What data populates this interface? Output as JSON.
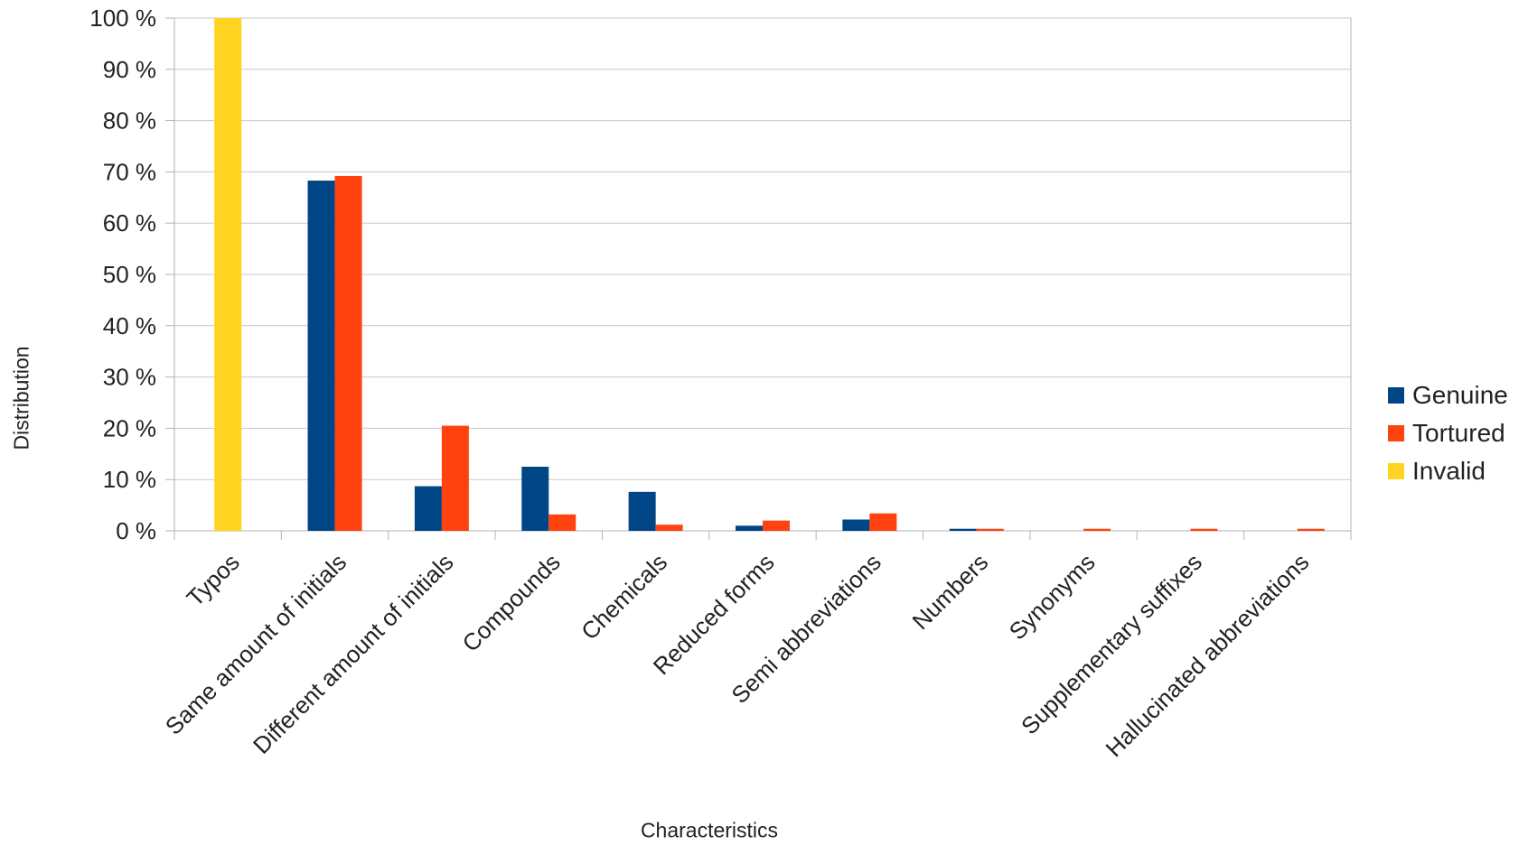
{
  "chart_data": {
    "type": "bar",
    "title": "",
    "xlabel": "Characteristics",
    "ylabel": "Distribution",
    "ylim": [
      0,
      100
    ],
    "yticks": [
      "0 %",
      "10 %",
      "20 %",
      "30 %",
      "40 %",
      "50 %",
      "60 %",
      "70 %",
      "80 %",
      "90 %",
      "100 %"
    ],
    "grid": true,
    "legend_position": "right",
    "categories": [
      "Typos",
      "Same amount of initials",
      "Different amount of initials",
      "Compounds",
      "Chemicals",
      "Reduced forms",
      "Semi abbreviations",
      "Numbers",
      "Synonyms",
      "Supplementary suffixes",
      "Hallucinated abbreviations"
    ],
    "series": [
      {
        "name": "Genuine",
        "color": "#004586",
        "values": [
          0,
          68.3,
          8.7,
          12.5,
          7.6,
          1.0,
          2.2,
          0.4,
          0,
          0,
          0
        ]
      },
      {
        "name": "Tortured",
        "color": "#ff420e",
        "values": [
          0,
          69.2,
          20.5,
          3.2,
          1.2,
          2.0,
          3.4,
          0.4,
          0.4,
          0.4,
          0.4
        ]
      },
      {
        "name": "Invalid",
        "color": "#ffd320",
        "values": [
          100,
          0,
          0,
          0,
          0,
          0,
          0,
          0,
          0,
          0,
          0
        ]
      }
    ]
  }
}
